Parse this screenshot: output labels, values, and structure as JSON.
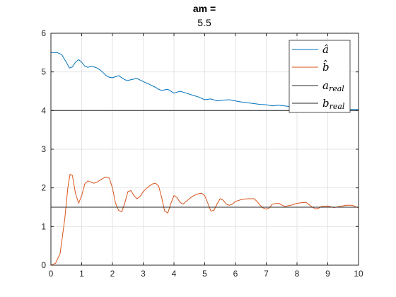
{
  "chart_data": {
    "type": "line",
    "title": "am =",
    "subtitle": "5.5",
    "xlabel": "",
    "ylabel": "",
    "xlim": [
      0,
      10
    ],
    "ylim": [
      0,
      6
    ],
    "xticks": [
      0,
      1,
      2,
      3,
      4,
      5,
      6,
      7,
      8,
      9,
      10
    ],
    "yticks": [
      0,
      1,
      2,
      3,
      4,
      5,
      6
    ],
    "grid": true,
    "legend_position": "top-right",
    "series": [
      {
        "name": "â",
        "color": "#0072BD",
        "x": [
          0,
          0.2,
          0.35,
          0.5,
          0.6,
          0.7,
          0.8,
          0.9,
          1.0,
          1.1,
          1.2,
          1.3,
          1.4,
          1.5,
          1.6,
          1.7,
          1.8,
          1.9,
          2.0,
          2.2,
          2.4,
          2.5,
          2.6,
          2.8,
          3.0,
          3.2,
          3.4,
          3.5,
          3.6,
          3.8,
          4.0,
          4.2,
          4.4,
          4.6,
          4.8,
          5.0,
          5.2,
          5.4,
          5.6,
          5.8,
          6.0,
          6.2,
          6.4,
          6.6,
          6.8,
          7.0,
          7.2,
          7.4,
          7.6,
          7.8,
          8.0,
          8.2,
          8.4,
          8.6,
          8.8,
          9.0,
          9.2,
          9.4,
          9.6,
          9.8,
          10.0
        ],
        "y": [
          5.5,
          5.5,
          5.45,
          5.25,
          5.1,
          5.13,
          5.25,
          5.32,
          5.25,
          5.15,
          5.12,
          5.14,
          5.13,
          5.1,
          5.05,
          4.98,
          4.9,
          4.86,
          4.85,
          4.9,
          4.8,
          4.77,
          4.8,
          4.83,
          4.75,
          4.68,
          4.6,
          4.55,
          4.52,
          4.55,
          4.45,
          4.5,
          4.45,
          4.4,
          4.35,
          4.28,
          4.3,
          4.25,
          4.27,
          4.28,
          4.25,
          4.22,
          4.2,
          4.18,
          4.16,
          4.15,
          4.12,
          4.14,
          4.12,
          4.1,
          4.1,
          4.08,
          4.07,
          4.07,
          4.06,
          4.05,
          4.05,
          4.04,
          4.03,
          4.03,
          4.03
        ]
      },
      {
        "name": "b̂",
        "color": "#D95319",
        "x": [
          0,
          0.15,
          0.3,
          0.45,
          0.55,
          0.62,
          0.7,
          0.8,
          0.9,
          1.0,
          1.1,
          1.2,
          1.3,
          1.4,
          1.5,
          1.6,
          1.7,
          1.8,
          1.9,
          2.0,
          2.1,
          2.2,
          2.3,
          2.4,
          2.5,
          2.6,
          2.7,
          2.8,
          2.9,
          3.0,
          3.1,
          3.2,
          3.3,
          3.4,
          3.5,
          3.6,
          3.7,
          3.8,
          3.9,
          4.0,
          4.1,
          4.2,
          4.3,
          4.4,
          4.5,
          4.6,
          4.7,
          4.8,
          4.9,
          5.0,
          5.1,
          5.2,
          5.3,
          5.4,
          5.5,
          5.6,
          5.7,
          5.8,
          5.9,
          6.0,
          6.2,
          6.4,
          6.6,
          6.7,
          6.8,
          6.9,
          7.0,
          7.1,
          7.2,
          7.4,
          7.6,
          7.8,
          8.0,
          8.2,
          8.3,
          8.4,
          8.5,
          8.6,
          8.7,
          8.8,
          9.0,
          9.2,
          9.4,
          9.6,
          9.8,
          10.0
        ],
        "y": [
          0,
          0.05,
          0.3,
          1.2,
          2.0,
          2.35,
          2.32,
          1.85,
          1.6,
          1.8,
          2.1,
          2.18,
          2.15,
          2.12,
          2.15,
          2.2,
          2.25,
          2.28,
          2.25,
          2.0,
          1.6,
          1.42,
          1.38,
          1.6,
          1.9,
          1.93,
          1.8,
          1.72,
          1.78,
          1.9,
          1.98,
          2.05,
          2.1,
          2.12,
          2.05,
          1.75,
          1.4,
          1.35,
          1.6,
          1.8,
          1.75,
          1.62,
          1.58,
          1.65,
          1.72,
          1.78,
          1.82,
          1.85,
          1.86,
          1.8,
          1.6,
          1.4,
          1.42,
          1.58,
          1.72,
          1.68,
          1.58,
          1.55,
          1.58,
          1.65,
          1.7,
          1.72,
          1.72,
          1.65,
          1.55,
          1.48,
          1.45,
          1.48,
          1.58,
          1.6,
          1.52,
          1.55,
          1.6,
          1.62,
          1.62,
          1.56,
          1.5,
          1.46,
          1.47,
          1.52,
          1.53,
          1.49,
          1.52,
          1.55,
          1.55,
          1.48
        ]
      },
      {
        "name": "a_real",
        "color": "#262626",
        "x": [
          0,
          10
        ],
        "y": [
          4.0,
          4.0
        ]
      },
      {
        "name": "b_real",
        "color": "#262626",
        "x": [
          0,
          10
        ],
        "y": [
          1.5,
          1.5
        ]
      }
    ]
  }
}
